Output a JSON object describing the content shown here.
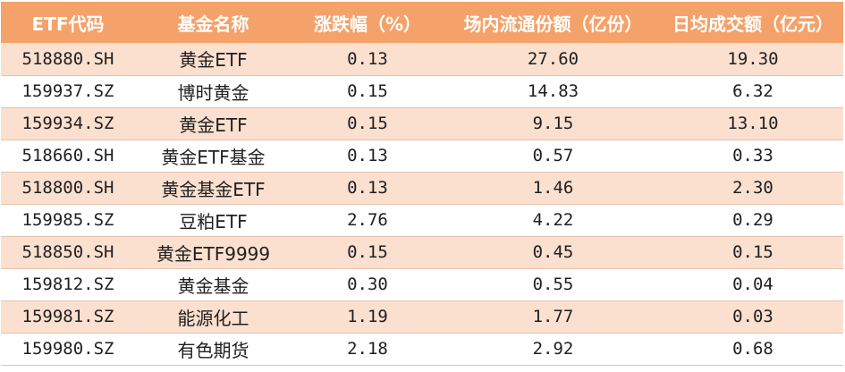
{
  "table": {
    "headers": [
      "ETF代码",
      "基金名称",
      "涨跌幅（%）",
      "场内流通份额（亿份）",
      "日均成交额（亿元）"
    ],
    "rows": [
      [
        "518880.SH",
        "黄金ETF",
        "0.13",
        "27.60",
        "19.30"
      ],
      [
        "159937.SZ",
        "博时黄金",
        "0.15",
        "14.83",
        "6.32"
      ],
      [
        "159934.SZ",
        "黄金ETF",
        "0.15",
        "9.15",
        "13.10"
      ],
      [
        "518660.SH",
        "黄金ETF基金",
        "0.13",
        "0.57",
        "0.33"
      ],
      [
        "518800.SH",
        "黄金基金ETF",
        "0.13",
        "1.46",
        "2.30"
      ],
      [
        "159985.SZ",
        "豆粕ETF",
        "2.76",
        "4.22",
        "0.29"
      ],
      [
        "518850.SH",
        "黄金ETF9999",
        "0.15",
        "0.45",
        "0.15"
      ],
      [
        "159812.SZ",
        "黄金基金",
        "0.30",
        "0.55",
        "0.04"
      ],
      [
        "159981.SZ",
        "能源化工",
        "1.19",
        "1.77",
        "0.03"
      ],
      [
        "159980.SZ",
        "有色期货",
        "2.18",
        "2.92",
        "0.68"
      ]
    ]
  },
  "colors": {
    "header_bg": "#f4a26a",
    "header_text": "#ffffff",
    "stripe_bg": "#fbe0cf"
  }
}
